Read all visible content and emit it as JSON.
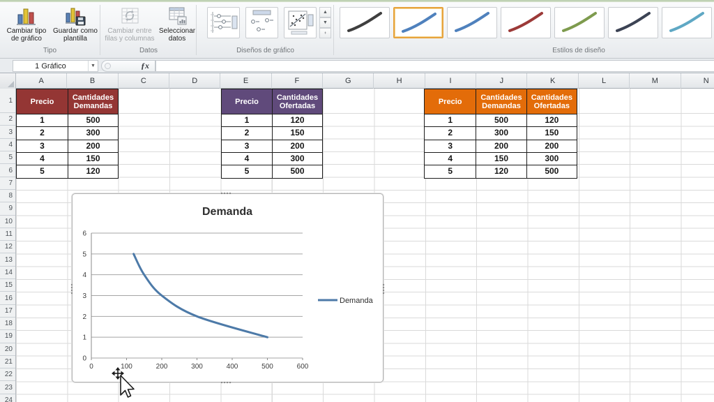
{
  "ribbon": {
    "tipo": {
      "label": "Tipo",
      "change_type_label": "Cambiar tipo de gráfico",
      "save_template_label": "Guardar como plantilla"
    },
    "datos": {
      "label": "Datos",
      "switch_rows_label": "Cambiar entre filas y columnas",
      "select_data_label": "Seleccionar datos"
    },
    "disenos": {
      "label": "Diseños de gráfico",
      "layouts": [
        "layout-1",
        "layout-2",
        "layout-3"
      ]
    },
    "estilos": {
      "label": "Estilos de diseño",
      "selected_index": 1,
      "selected_border_color": "#e7a33d",
      "style_colors": [
        "#3f3f3f",
        "#4f81bd",
        "#4f81bd",
        "#9c3a38",
        "#7e9b4e",
        "#3c4354",
        "#5fa8c4"
      ]
    }
  },
  "formula_bar": {
    "name_box_value": "1 Gráfico",
    "fx_label": "ƒx",
    "formula_value": ""
  },
  "grid": {
    "columns": [
      "A",
      "B",
      "C",
      "D",
      "E",
      "F",
      "G",
      "H",
      "I",
      "J",
      "K",
      "L",
      "M",
      "N"
    ],
    "rows": [
      1,
      2,
      3,
      4,
      5,
      6,
      7,
      8,
      9,
      10,
      11,
      12,
      13,
      14,
      15,
      16,
      17,
      18,
      19,
      20,
      21,
      22,
      23,
      24
    ]
  },
  "tables": [
    {
      "name": "tabla-demanda",
      "header_color": "#943634",
      "columns": [
        "Precio",
        "Cantidades Demandas"
      ],
      "rows": [
        [
          1,
          500
        ],
        [
          2,
          300
        ],
        [
          3,
          200
        ],
        [
          4,
          150
        ],
        [
          5,
          120
        ]
      ]
    },
    {
      "name": "tabla-oferta",
      "header_color": "#604a7b",
      "columns": [
        "Precio",
        "Cantidades Ofertadas"
      ],
      "rows": [
        [
          1,
          120
        ],
        [
          2,
          150
        ],
        [
          3,
          200
        ],
        [
          4,
          300
        ],
        [
          5,
          500
        ]
      ]
    },
    {
      "name": "tabla-combinada",
      "header_color": "#e36c09",
      "columns": [
        "Precio",
        "Cantidades Demandas",
        "Cantidades Ofertadas"
      ],
      "rows": [
        [
          1,
          500,
          120
        ],
        [
          2,
          300,
          150
        ],
        [
          3,
          200,
          200
        ],
        [
          4,
          150,
          300
        ],
        [
          5,
          120,
          500
        ]
      ]
    }
  ],
  "chart_data": {
    "type": "line",
    "title": "Demanda",
    "xlabel": "",
    "ylabel": "",
    "xlim": [
      0,
      600
    ],
    "ylim": [
      0,
      6
    ],
    "x_ticks": [
      0,
      100,
      200,
      300,
      400,
      500,
      600
    ],
    "y_ticks": [
      0,
      1,
      2,
      3,
      4,
      5,
      6
    ],
    "grid": "horizontal",
    "legend_position": "right",
    "series": [
      {
        "name": "Demanda",
        "color": "#4d7aa8",
        "smooth": true,
        "points": [
          [
            120,
            5
          ],
          [
            150,
            4
          ],
          [
            200,
            3
          ],
          [
            300,
            2
          ],
          [
            500,
            1
          ]
        ]
      }
    ]
  },
  "cursor_icon": "move-pointer-cursor"
}
